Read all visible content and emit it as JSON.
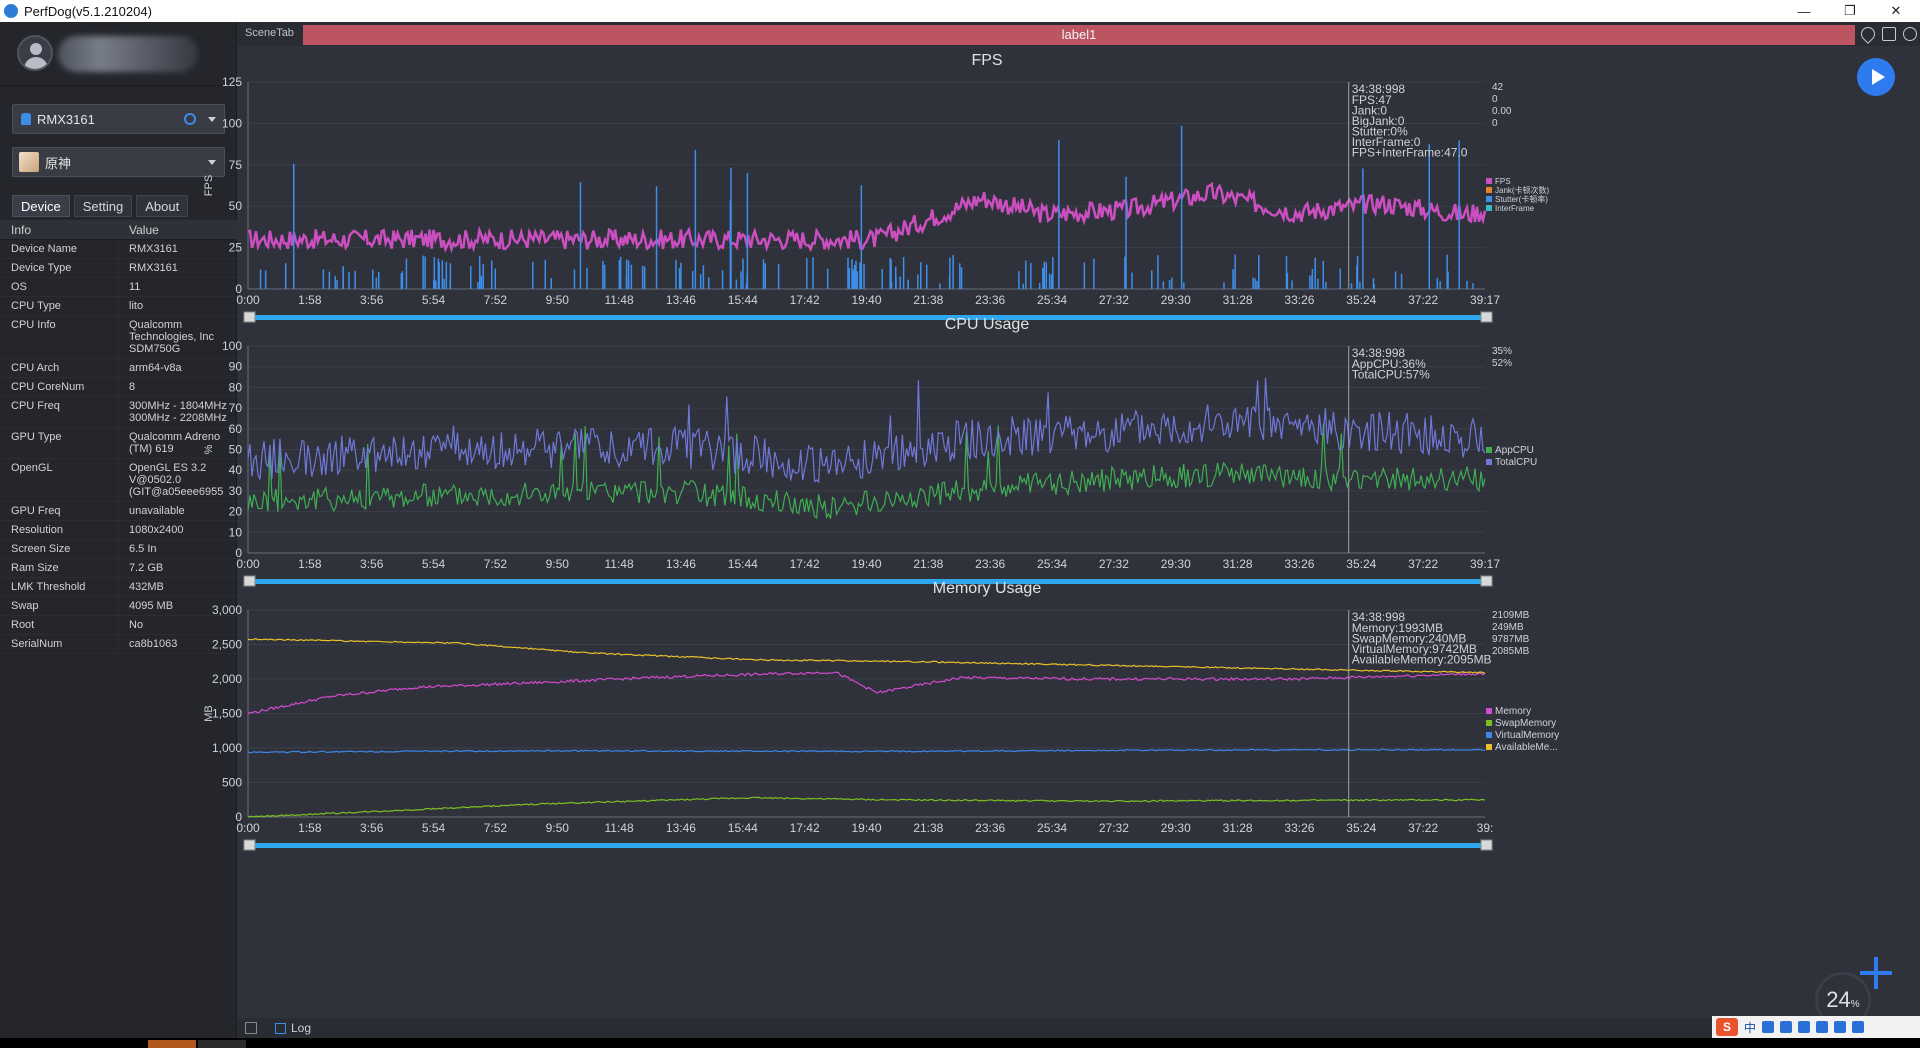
{
  "window": {
    "title": "PerfDog(v5.1.210204)"
  },
  "sidebar": {
    "device_selector": "RMX3161",
    "app_selector": "原神",
    "tabs": [
      "Device",
      "Setting",
      "About"
    ],
    "table_header": {
      "key": "Info",
      "value": "Value"
    },
    "rows": [
      {
        "k": "Device Name",
        "v": "RMX3161"
      },
      {
        "k": "Device Type",
        "v": "RMX3161"
      },
      {
        "k": "OS",
        "v": "11"
      },
      {
        "k": "CPU Type",
        "v": "lito"
      },
      {
        "k": "CPU Info",
        "v": "Qualcomm\nTechnologies, Inc\nSDM750G"
      },
      {
        "k": "CPU Arch",
        "v": "arm64-v8a"
      },
      {
        "k": "CPU CoreNum",
        "v": "8"
      },
      {
        "k": "CPU Freq",
        "v": "300MHz - 1804MHz\n300MHz - 2208MHz"
      },
      {
        "k": "GPU Type",
        "v": "Qualcomm Adreno\n(TM) 619"
      },
      {
        "k": "OpenGL",
        "v": "OpenGL ES 3.2\nV@0502.0\n(GIT@a05eee6955"
      },
      {
        "k": "GPU Freq",
        "v": "unavailable"
      },
      {
        "k": "Resolution",
        "v": "1080x2400"
      },
      {
        "k": "Screen Size",
        "v": "6.5 In"
      },
      {
        "k": "Ram Size",
        "v": "7.2 GB"
      },
      {
        "k": "LMK Threshold",
        "v": "432MB"
      },
      {
        "k": "Swap",
        "v": "4095 MB"
      },
      {
        "k": "Root",
        "v": "No"
      },
      {
        "k": "SerialNum",
        "v": "ca8b1063"
      }
    ]
  },
  "toolbar": {
    "scene_tab": "SceneTab",
    "label": "label1"
  },
  "bottom": {
    "log_label": "Log"
  },
  "gauge": {
    "value": "24",
    "unit": "%"
  },
  "tray": {
    "ime": "中"
  },
  "colors": {
    "fps": "#cc4fc1",
    "jank": "#e8822a",
    "stutter": "#3e8fea",
    "interframe": "#38b8c8",
    "appcpu": "#3fae52",
    "totalcpu": "#7078d8",
    "memory": "#d44ad0",
    "swap": "#7cc022",
    "virtual": "#3e86e8",
    "available": "#e8c02a",
    "accent": "#2e7bf0",
    "label_bar": "#bc5462"
  },
  "chart_data": [
    {
      "type": "line",
      "title": "FPS",
      "ylabel": "FPS",
      "ylim": [
        0,
        125
      ],
      "yticks": [
        "0",
        "25",
        "50",
        "75",
        "100",
        "125"
      ],
      "xticks": [
        "0:00",
        "1:58",
        "3:56",
        "5:54",
        "7:52",
        "9:50",
        "11:48",
        "13:46",
        "15:44",
        "17:42",
        "19:40",
        "21:38",
        "23:36",
        "25:34",
        "27:32",
        "29:30",
        "31:28",
        "33:26",
        "35:24",
        "37:22",
        "39:17"
      ],
      "cursor": {
        "time": "34:38:998",
        "lines": [
          "FPS:47",
          "Jank:0",
          "BigJank:0",
          "Stutter:0%",
          "InterFrame:0",
          "FPS+InterFrame:47.0"
        ]
      },
      "current_values": [
        "42",
        "0",
        "0.00",
        "0"
      ],
      "series": [
        {
          "name": "FPS",
          "segments": [
            [
              0,
              30
            ],
            [
              30,
              30
            ],
            [
              35,
              55
            ],
            [
              38,
              45
            ],
            [
              42,
              48
            ],
            [
              46,
              58
            ],
            [
              50,
              46
            ],
            [
              54,
              52
            ],
            [
              58,
              45
            ],
            [
              59,
              47
            ]
          ]
        },
        {
          "name": "Jank(卡顿次数)"
        },
        {
          "name": "Stutter(卡顿率)"
        },
        {
          "name": "InterFrame"
        }
      ]
    },
    {
      "type": "line",
      "title": "CPU Usage",
      "ylabel": "%",
      "ylim": [
        0,
        100
      ],
      "yticks": [
        "0",
        "10",
        "20",
        "30",
        "40",
        "50",
        "60",
        "70",
        "80",
        "90",
        "100"
      ],
      "xticks": [
        "0:00",
        "1:58",
        "3:56",
        "5:54",
        "7:52",
        "9:50",
        "11:48",
        "13:46",
        "15:44",
        "17:42",
        "19:40",
        "21:38",
        "23:36",
        "25:34",
        "27:32",
        "29:30",
        "31:28",
        "33:26",
        "35:24",
        "37:22",
        "39:17"
      ],
      "cursor": {
        "time": "34:38:998",
        "lines": [
          "AppCPU:36%",
          "TotalCPU:57%"
        ]
      },
      "current_values": [
        "35%",
        "52%"
      ],
      "series": [
        {
          "name": "AppCPU",
          "segments": [
            [
              0,
              25
            ],
            [
              10,
              28
            ],
            [
              20,
              30
            ],
            [
              28,
              22
            ],
            [
              34,
              30
            ],
            [
              40,
              35
            ],
            [
              46,
              38
            ],
            [
              52,
              36
            ],
            [
              59,
              36
            ]
          ]
        },
        {
          "name": "TotalCPU",
          "segments": [
            [
              0,
              45
            ],
            [
              10,
              50
            ],
            [
              20,
              52
            ],
            [
              28,
              42
            ],
            [
              34,
              55
            ],
            [
              40,
              58
            ],
            [
              46,
              62
            ],
            [
              52,
              60
            ],
            [
              59,
              55
            ]
          ]
        }
      ]
    },
    {
      "type": "line",
      "title": "Memory Usage",
      "ylabel": "MB",
      "ylim": [
        0,
        3000
      ],
      "yticks": [
        "0",
        "500",
        "1,000",
        "1,500",
        "2,000",
        "2,500",
        "3,000"
      ],
      "xticks": [
        "0:00",
        "1:58",
        "3:56",
        "5:54",
        "7:52",
        "9:50",
        "11:48",
        "13:46",
        "15:44",
        "17:42",
        "19:40",
        "21:38",
        "23:36",
        "25:34",
        "27:32",
        "29:30",
        "31:28",
        "33:26",
        "35:24",
        "37:22",
        "39:"
      ],
      "cursor": {
        "time": "34:38:998",
        "lines": [
          "Memory:1993MB",
          "SwapMemory:240MB",
          "VirtualMemory:9742MB",
          "AvailableMemory:2095MB"
        ]
      },
      "current_values": [
        "2109MB",
        "249MB",
        "9787MB",
        "2085MB"
      ],
      "series": [
        {
          "name": "Memory",
          "segments": [
            [
              0,
              1500
            ],
            [
              4,
              1750
            ],
            [
              8,
              1880
            ],
            [
              14,
              1950
            ],
            [
              20,
              2030
            ],
            [
              28,
              2100
            ],
            [
              30,
              1800
            ],
            [
              34,
              2020
            ],
            [
              40,
              2000
            ],
            [
              50,
              2000
            ],
            [
              59,
              2080
            ]
          ]
        },
        {
          "name": "SwapMemory",
          "segments": [
            [
              0,
              0
            ],
            [
              6,
              80
            ],
            [
              14,
              190
            ],
            [
              24,
              280
            ],
            [
              30,
              250
            ],
            [
              40,
              230
            ],
            [
              59,
              249
            ]
          ]
        },
        {
          "name": "VirtualMemory",
          "segments": [
            [
              0,
              940
            ],
            [
              14,
              960
            ],
            [
              30,
              950
            ],
            [
              44,
              970
            ],
            [
              59,
              975
            ]
          ]
        },
        {
          "name": "AvailableMe...",
          "segments": [
            [
              0,
              2580
            ],
            [
              10,
              2520
            ],
            [
              16,
              2380
            ],
            [
              24,
              2280
            ],
            [
              32,
              2250
            ],
            [
              44,
              2180
            ],
            [
              59,
              2090
            ]
          ]
        }
      ]
    }
  ]
}
